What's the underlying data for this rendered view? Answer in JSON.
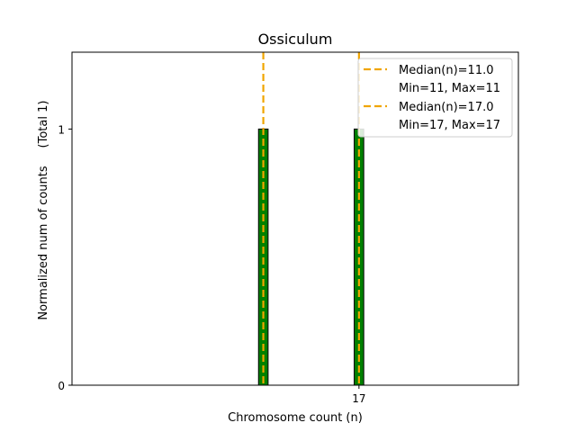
{
  "chart_data": {
    "type": "bar",
    "title": "Ossiculum",
    "xlabel": "Chromosome count (n)",
    "ylabel": "Normalized num of counts",
    "ylabel_note": "(Total 1)",
    "xlim": [
      -1,
      27
    ],
    "ylim": [
      0,
      1.3
    ],
    "x_ticks": [
      {
        "value": 17,
        "label": "17"
      }
    ],
    "y_ticks": [
      {
        "value": 0,
        "label": "0"
      },
      {
        "value": 1,
        "label": "1"
      }
    ],
    "bars": [
      {
        "x": 11,
        "value": 1.0
      },
      {
        "x": 17,
        "value": 1.0
      }
    ],
    "baseline": {
      "from": -1,
      "to": 13,
      "value": 0
    },
    "median_lines": [
      {
        "x": 11,
        "label": "Median(n)=11.0",
        "range_label": "Min=11, Max=11"
      },
      {
        "x": 17,
        "label": "Median(n)=17.0",
        "range_label": "Min=17, Max=17"
      }
    ],
    "bar_color": "#008000",
    "bar_edge_color": "#000000",
    "median_color": "#f0a500",
    "legend_position": "top-right",
    "grid": false
  }
}
